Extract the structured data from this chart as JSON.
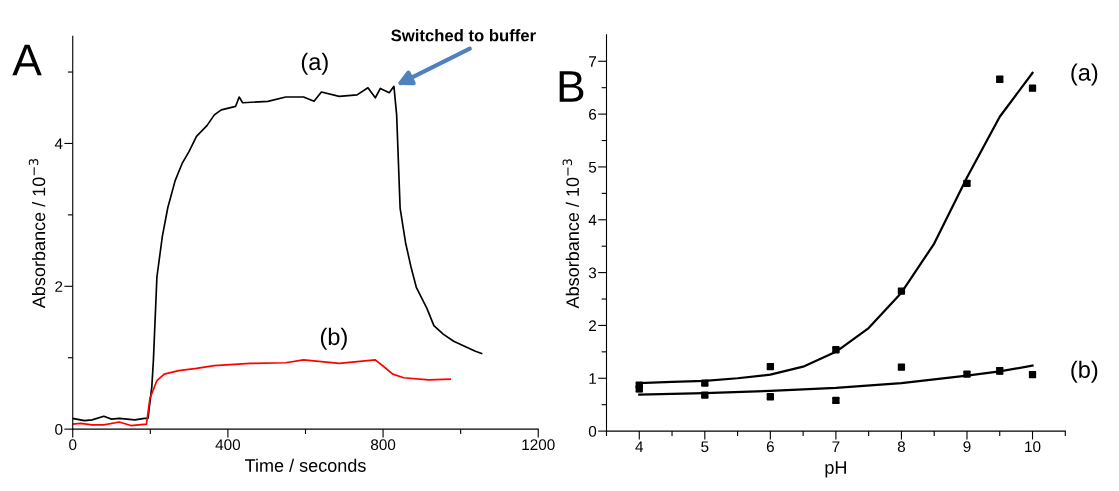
{
  "chart_data": [
    {
      "type": "line",
      "xlabel": "Time / seconds",
      "ylabel": "Absorbance / 10$^{−3}$",
      "xlim": [
        0,
        1200
      ],
      "ylim": [
        0,
        5.5
      ],
      "xticks": [
        0,
        {
          "value": 200,
          "label": null
        },
        400,
        {
          "value": 600,
          "label": null
        },
        800,
        {
          "value": 1000,
          "label": null
        },
        1200
      ],
      "yticks": [
        0,
        {
          "value": 1,
          "label": null
        },
        2,
        {
          "value": 3,
          "label": null
        },
        4,
        {
          "value": 5,
          "label": null
        }
      ],
      "grid": false,
      "marker": "none",
      "line_style": "solid",
      "series": [
        {
          "color": "#000000",
          "x": [
            0,
            30,
            50,
            80,
            100,
            120,
            160,
            185,
            194,
            204,
            208,
            217,
            231,
            245,
            264,
            282,
            300,
            319,
            346,
            365,
            383,
            420,
            429,
            438,
            503,
            549,
            595,
            622,
            641,
            687,
            733,
            761,
            780,
            793,
            816,
            828,
            835,
            844,
            858,
            872,
            886,
            913,
            931,
            955,
            982,
            1010,
            1038,
            1054
          ],
          "values": [
            0.15,
            0.12,
            0.13,
            0.18,
            0.14,
            0.15,
            0.13,
            0.15,
            0.15,
            0.6,
            0.97,
            2.13,
            2.7,
            3.1,
            3.48,
            3.72,
            3.89,
            4.1,
            4.25,
            4.4,
            4.47,
            4.52,
            4.65,
            4.57,
            4.59,
            4.65,
            4.65,
            4.59,
            4.72,
            4.66,
            4.68,
            4.78,
            4.64,
            4.77,
            4.71,
            4.8,
            4.4,
            3.09,
            2.61,
            2.27,
            1.98,
            1.69,
            1.45,
            1.33,
            1.23,
            1.16,
            1.09,
            1.06
          ]
        },
        {
          "color": "#ff0000",
          "x": [
            0,
            20,
            50,
            80,
            120,
            150,
            190,
            199,
            217,
            236,
            273,
            319,
            365,
            457,
            549,
            595,
            687,
            780,
            803,
            825,
            853,
            918,
            973
          ],
          "values": [
            0.07,
            0.08,
            0.06,
            0.06,
            0.1,
            0.05,
            0.07,
            0.43,
            0.68,
            0.77,
            0.82,
            0.85,
            0.89,
            0.92,
            0.93,
            0.97,
            0.92,
            0.97,
            0.87,
            0.77,
            0.72,
            0.69,
            0.7
          ]
        }
      ],
      "annotations": [
        "A",
        "(a)",
        "(b)",
        {
          "text": "Switched to buffer",
          "x": 828,
          "y": 4.8
        }
      ]
    },
    {
      "type": "scatter",
      "xlabel": "pH",
      "ylabel": "Absorbance / 10$^{−3}$",
      "xlim": [
        3.5,
        10.5
      ],
      "ylim": [
        0,
        7.5
      ],
      "xticks": [
        {
          "value": 3.5,
          "label": null
        },
        4,
        {
          "value": 4.5,
          "label": null
        },
        5,
        {
          "value": 5.5,
          "label": null
        },
        6,
        {
          "value": 6.5,
          "label": null
        },
        7,
        {
          "value": 7.5,
          "label": null
        },
        8,
        {
          "value": 8.5,
          "label": null
        },
        9,
        {
          "value": 9.5,
          "label": null
        },
        10,
        {
          "value": 10.5,
          "label": null
        }
      ],
      "yticks": [
        0,
        {
          "value": 0.5,
          "label": null
        },
        1,
        {
          "value": 1.5,
          "label": null
        },
        2,
        {
          "value": 2.5,
          "label": null
        },
        3,
        {
          "value": 3.5,
          "label": null
        },
        4,
        {
          "value": 4.5,
          "label": null
        },
        5,
        {
          "value": 5.5,
          "label": null
        },
        6,
        {
          "value": 6.5,
          "label": null
        },
        7
      ],
      "grid": false,
      "series": [
        {
          "type": "scatter",
          "marker": "square",
          "color": "#000000",
          "x": [
            4,
            5,
            6,
            7,
            8,
            9,
            9.5,
            10
          ],
          "values": [
            0.87,
            0.91,
            1.22,
            1.54,
            2.65,
            4.69,
            6.66,
            6.49
          ],
          "errors": [
            0.04,
            0.04,
            0.04,
            0.04,
            0.04,
            0.04,
            0.05,
            0.04
          ]
        },
        {
          "type": "scatter",
          "marker": "square",
          "color": "#000000",
          "x": [
            4,
            5,
            6,
            7,
            8,
            9,
            9.5,
            10
          ],
          "values": [
            0.8,
            0.68,
            0.65,
            0.58,
            1.21,
            1.08,
            1.14,
            1.07
          ],
          "errors": [
            0.05,
            0.03,
            0.04,
            0.04,
            0.04,
            0.04,
            0.06,
            0.04
          ]
        },
        {
          "type": "line",
          "color": "#000000",
          "x": [
            4,
            4.5,
            5,
            5.5,
            6,
            6.5,
            7,
            7.5,
            8,
            8.5,
            9,
            9.5,
            10
          ],
          "values": [
            0.91,
            0.93,
            0.95,
            1.0,
            1.07,
            1.22,
            1.5,
            1.95,
            2.62,
            3.55,
            4.8,
            5.95,
            6.78
          ]
        },
        {
          "type": "line",
          "color": "#000000",
          "x": [
            4,
            5,
            6,
            7,
            8,
            9,
            9.5,
            10
          ],
          "values": [
            0.69,
            0.72,
            0.76,
            0.82,
            0.91,
            1.05,
            1.13,
            1.24
          ]
        }
      ],
      "annotations": [
        "B",
        "(a)",
        "(b)"
      ]
    }
  ]
}
